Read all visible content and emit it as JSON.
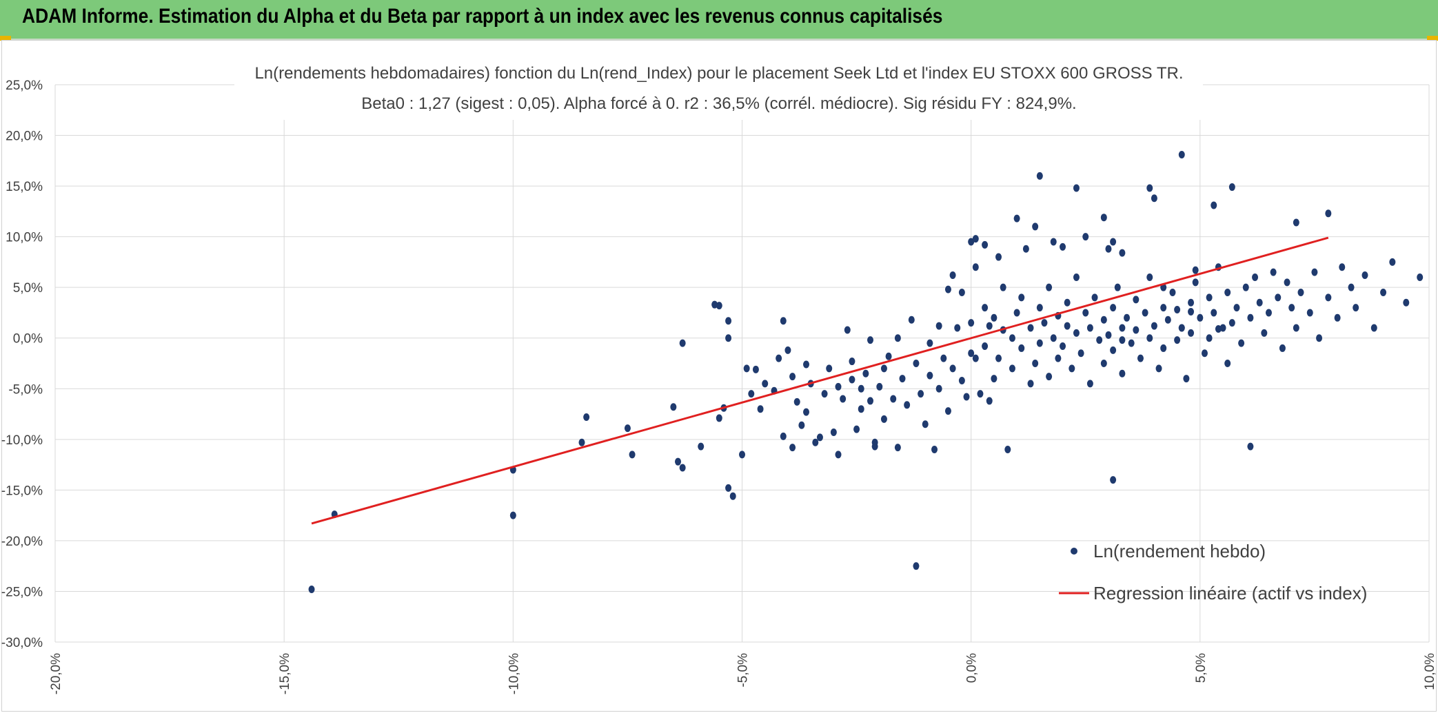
{
  "banner": {
    "title": "ADAM Informe. Estimation du Alpha et du Beta par rapport à un index avec les revenus connus capitalisés",
    "color": "#7dc97a"
  },
  "chart_data": {
    "type": "scatter",
    "title": "Ln(rendements hebdomadaires) fonction du Ln(rend_Index) pour le placement Seek Ltd et l'index EU STOXX 600 GROSS TR.",
    "subtitle": "Beta0 : 1,27 (sigest : 0,05). Alpha forcé à 0. r2 : 36,5% (corrél. médiocre). Sig résidu FY : 824,9%.",
    "xlabel": "",
    "ylabel": "",
    "xlim": [
      -0.2,
      0.1
    ],
    "ylim": [
      -0.3,
      0.25
    ],
    "x_tick_labels": [
      "-20,0%",
      "-15,0%",
      "-10,0%",
      "-5,0%",
      "0,0%",
      "5,0%",
      "10,0%"
    ],
    "y_tick_labels": [
      "25,0%",
      "20,0%",
      "15,0%",
      "10,0%",
      "5,0%",
      "0,0%",
      "-5,0%",
      "-10,0%",
      "-15,0%",
      "-20,0%",
      "-25,0%",
      "-30,0%"
    ],
    "grid": true,
    "legend_position": "bottom-right",
    "series": [
      {
        "name": "Ln(rendement hebdo)",
        "kind": "scatter",
        "color": "#1f3a6e",
        "points": [
          [
            -0.144,
            -0.248
          ],
          [
            -0.139,
            -0.174
          ],
          [
            -0.1,
            -0.175
          ],
          [
            -0.1,
            -0.13
          ],
          [
            -0.084,
            -0.078
          ],
          [
            -0.085,
            -0.103
          ],
          [
            -0.075,
            -0.089
          ],
          [
            -0.074,
            -0.115
          ],
          [
            -0.065,
            -0.068
          ],
          [
            -0.064,
            -0.122
          ],
          [
            -0.063,
            -0.128
          ],
          [
            -0.063,
            -0.005
          ],
          [
            -0.059,
            -0.107
          ],
          [
            -0.056,
            0.033
          ],
          [
            -0.055,
            0.032
          ],
          [
            -0.055,
            -0.079
          ],
          [
            -0.054,
            -0.069
          ],
          [
            -0.053,
            0.017
          ],
          [
            -0.053,
            0.0
          ],
          [
            -0.053,
            -0.148
          ],
          [
            -0.052,
            -0.156
          ],
          [
            -0.05,
            -0.115
          ],
          [
            -0.049,
            -0.03
          ],
          [
            -0.048,
            -0.055
          ],
          [
            -0.047,
            -0.031
          ],
          [
            -0.046,
            -0.07
          ],
          [
            -0.045,
            -0.045
          ],
          [
            -0.043,
            -0.052
          ],
          [
            -0.042,
            -0.02
          ],
          [
            -0.041,
            -0.097
          ],
          [
            -0.041,
            0.017
          ],
          [
            -0.04,
            -0.012
          ],
          [
            -0.039,
            -0.038
          ],
          [
            -0.039,
            -0.108
          ],
          [
            -0.038,
            -0.063
          ],
          [
            -0.037,
            -0.086
          ],
          [
            -0.036,
            -0.073
          ],
          [
            -0.036,
            -0.026
          ],
          [
            -0.035,
            -0.045
          ],
          [
            -0.034,
            -0.103
          ],
          [
            -0.033,
            -0.098
          ],
          [
            -0.032,
            -0.055
          ],
          [
            -0.031,
            -0.03
          ],
          [
            -0.03,
            -0.093
          ],
          [
            -0.029,
            -0.048
          ],
          [
            -0.029,
            -0.115
          ],
          [
            -0.028,
            -0.06
          ],
          [
            -0.027,
            0.008
          ],
          [
            -0.026,
            -0.023
          ],
          [
            -0.026,
            -0.041
          ],
          [
            -0.025,
            -0.09
          ],
          [
            -0.024,
            -0.07
          ],
          [
            -0.024,
            -0.05
          ],
          [
            -0.023,
            -0.035
          ],
          [
            -0.022,
            -0.002
          ],
          [
            -0.022,
            -0.062
          ],
          [
            -0.021,
            -0.103
          ],
          [
            -0.021,
            -0.107
          ],
          [
            -0.02,
            -0.048
          ],
          [
            -0.019,
            -0.03
          ],
          [
            -0.019,
            -0.08
          ],
          [
            -0.018,
            -0.018
          ],
          [
            -0.017,
            -0.06
          ],
          [
            -0.016,
            -0.108
          ],
          [
            -0.016,
            0.0
          ],
          [
            -0.015,
            -0.04
          ],
          [
            -0.014,
            -0.066
          ],
          [
            -0.013,
            0.018
          ],
          [
            -0.012,
            -0.225
          ],
          [
            -0.012,
            -0.025
          ],
          [
            -0.011,
            -0.055
          ],
          [
            -0.01,
            -0.085
          ],
          [
            -0.009,
            -0.005
          ],
          [
            -0.009,
            -0.037
          ],
          [
            -0.008,
            -0.11
          ],
          [
            -0.007,
            0.012
          ],
          [
            -0.007,
            -0.05
          ],
          [
            -0.006,
            -0.02
          ],
          [
            -0.005,
            0.048
          ],
          [
            -0.005,
            -0.072
          ],
          [
            -0.004,
            0.062
          ],
          [
            -0.004,
            -0.03
          ],
          [
            -0.003,
            0.01
          ],
          [
            -0.002,
            -0.042
          ],
          [
            -0.002,
            0.045
          ],
          [
            -0.001,
            -0.058
          ],
          [
            0.0,
            -0.015
          ],
          [
            0.0,
            0.015
          ],
          [
            0.001,
            0.07
          ],
          [
            0.001,
            -0.02
          ],
          [
            0.002,
            -0.055
          ],
          [
            0.003,
            0.03
          ],
          [
            0.003,
            -0.008
          ],
          [
            0.004,
            0.012
          ],
          [
            0.004,
            -0.062
          ],
          [
            0.005,
            -0.04
          ],
          [
            0.005,
            0.02
          ],
          [
            0.006,
            -0.02
          ],
          [
            0.007,
            0.05
          ],
          [
            0.007,
            0.008
          ],
          [
            0.008,
            -0.11
          ],
          [
            0.009,
            0.0
          ],
          [
            0.009,
            -0.03
          ],
          [
            0.01,
            0.025
          ],
          [
            0.011,
            -0.01
          ],
          [
            0.011,
            0.04
          ],
          [
            0.012,
            0.088
          ],
          [
            0.013,
            -0.045
          ],
          [
            0.013,
            0.01
          ],
          [
            0.014,
            -0.025
          ],
          [
            0.015,
            0.03
          ],
          [
            0.015,
            -0.005
          ],
          [
            0.016,
            0.015
          ],
          [
            0.017,
            -0.038
          ],
          [
            0.017,
            0.05
          ],
          [
            0.018,
            0.0
          ],
          [
            0.019,
            -0.02
          ],
          [
            0.019,
            0.022
          ],
          [
            0.02,
            -0.008
          ],
          [
            0.021,
            0.035
          ],
          [
            0.021,
            0.012
          ],
          [
            0.022,
            -0.03
          ],
          [
            0.023,
            0.005
          ],
          [
            0.023,
            0.06
          ],
          [
            0.024,
            -0.015
          ],
          [
            0.025,
            0.025
          ],
          [
            0.026,
            -0.045
          ],
          [
            0.026,
            0.01
          ],
          [
            0.027,
            0.04
          ],
          [
            0.028,
            -0.002
          ],
          [
            0.029,
            0.018
          ],
          [
            0.029,
            -0.025
          ],
          [
            0.03,
            0.003
          ],
          [
            0.031,
            0.03
          ],
          [
            0.031,
            -0.012
          ],
          [
            0.032,
            0.05
          ],
          [
            0.033,
            0.01
          ],
          [
            0.033,
            -0.035
          ],
          [
            0.034,
            0.02
          ],
          [
            0.035,
            -0.005
          ],
          [
            0.036,
            0.038
          ],
          [
            0.036,
            0.008
          ],
          [
            0.037,
            -0.02
          ],
          [
            0.038,
            0.025
          ],
          [
            0.039,
            0.0
          ],
          [
            0.039,
            0.06
          ],
          [
            0.04,
            0.012
          ],
          [
            0.041,
            -0.03
          ],
          [
            0.042,
            0.03
          ],
          [
            0.042,
            -0.01
          ],
          [
            0.043,
            0.018
          ],
          [
            0.044,
            0.045
          ],
          [
            0.045,
            -0.002
          ],
          [
            0.045,
            0.028
          ],
          [
            0.046,
            0.01
          ],
          [
            0.047,
            -0.04
          ],
          [
            0.048,
            0.035
          ],
          [
            0.048,
            0.005
          ],
          [
            0.049,
            0.055
          ],
          [
            0.05,
            0.02
          ],
          [
            0.051,
            -0.015
          ],
          [
            0.052,
            0.04
          ],
          [
            0.052,
            0.0
          ],
          [
            0.053,
            0.025
          ],
          [
            0.054,
            0.07
          ],
          [
            0.055,
            0.01
          ],
          [
            0.056,
            -0.025
          ],
          [
            0.056,
            0.045
          ],
          [
            0.057,
            0.015
          ],
          [
            0.058,
            0.03
          ],
          [
            0.059,
            -0.005
          ],
          [
            0.06,
            0.05
          ],
          [
            0.061,
            0.02
          ],
          [
            0.062,
            0.06
          ],
          [
            0.063,
            0.035
          ],
          [
            0.064,
            0.005
          ],
          [
            0.065,
            0.025
          ],
          [
            0.066,
            0.065
          ],
          [
            0.067,
            0.04
          ],
          [
            0.068,
            -0.01
          ],
          [
            0.069,
            0.055
          ],
          [
            0.07,
            0.03
          ],
          [
            0.071,
            0.01
          ],
          [
            0.072,
            0.045
          ],
          [
            0.074,
            0.025
          ],
          [
            0.075,
            0.065
          ],
          [
            0.076,
            0.0
          ],
          [
            0.078,
            0.04
          ],
          [
            0.08,
            0.02
          ],
          [
            0.081,
            0.07
          ],
          [
            0.083,
            0.05
          ],
          [
            0.084,
            0.03
          ],
          [
            0.086,
            0.062
          ],
          [
            0.088,
            0.01
          ],
          [
            0.09,
            0.045
          ],
          [
            0.092,
            0.075
          ],
          [
            0.095,
            0.035
          ],
          [
            0.098,
            0.06
          ],
          [
            0.0,
            0.095
          ],
          [
            0.001,
            0.098
          ],
          [
            0.003,
            0.092
          ],
          [
            0.006,
            0.08
          ],
          [
            0.01,
            0.118
          ],
          [
            0.014,
            0.11
          ],
          [
            0.018,
            0.095
          ],
          [
            0.02,
            0.09
          ],
          [
            0.025,
            0.1
          ],
          [
            0.031,
            0.095
          ],
          [
            0.03,
            0.088
          ],
          [
            0.033,
            0.084
          ],
          [
            0.015,
            0.16
          ],
          [
            0.023,
            0.148
          ],
          [
            0.029,
            0.119
          ],
          [
            0.039,
            0.148
          ],
          [
            0.04,
            0.138
          ],
          [
            0.046,
            0.181
          ],
          [
            0.057,
            0.149
          ],
          [
            0.053,
            0.131
          ],
          [
            0.071,
            0.114
          ],
          [
            0.078,
            0.123
          ],
          [
            0.049,
            0.067
          ],
          [
            0.054,
            0.009
          ],
          [
            0.046,
            0.01
          ],
          [
            0.048,
            0.026
          ],
          [
            0.033,
            -0.002
          ],
          [
            0.031,
            -0.14
          ],
          [
            0.061,
            -0.107
          ],
          [
            0.042,
            0.05
          ]
        ]
      },
      {
        "name": "Regression linéaire (actif vs index)",
        "kind": "line",
        "color": "#e02020",
        "x": [
          -0.144,
          0.078
        ],
        "y": [
          -0.183,
          0.099
        ]
      }
    ]
  }
}
